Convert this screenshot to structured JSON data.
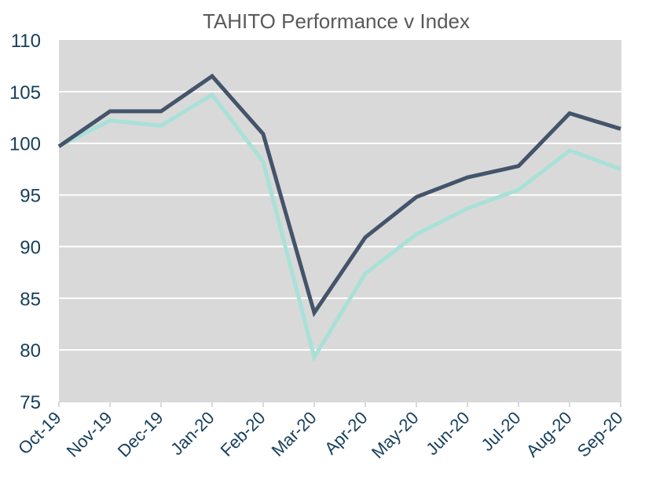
{
  "chart_data": {
    "type": "line",
    "title": "TAHITO Performance v Index",
    "xlabel": "",
    "ylabel": "",
    "ylim": [
      75,
      110
    ],
    "yticks": [
      75,
      80,
      85,
      90,
      95,
      100,
      105,
      110
    ],
    "grid": true,
    "legend": "none",
    "categories": [
      "Oct-19",
      "Nov-19",
      "Dec-19",
      "Jan-20",
      "Feb-20",
      "Mar-20",
      "Apr-20",
      "May-20",
      "Jun-20",
      "Jul-20",
      "Aug-20",
      "Sep-20"
    ],
    "series": [
      {
        "name": "TAHITO",
        "color": "#44546a",
        "values": [
          99.7,
          103.1,
          103.1,
          106.5,
          100.9,
          83.6,
          90.9,
          94.8,
          96.7,
          97.8,
          102.9,
          101.4
        ]
      },
      {
        "name": "Index",
        "color": "#a8e1d8",
        "values": [
          99.7,
          102.2,
          101.7,
          104.7,
          98.2,
          79.3,
          87.4,
          91.2,
          93.7,
          95.5,
          99.3,
          97.5
        ]
      }
    ]
  },
  "colors": {
    "plot_bg": "#d9d9d9",
    "grid": "#ffffff",
    "axis_text": "#17405c",
    "title_text": "#595959"
  }
}
